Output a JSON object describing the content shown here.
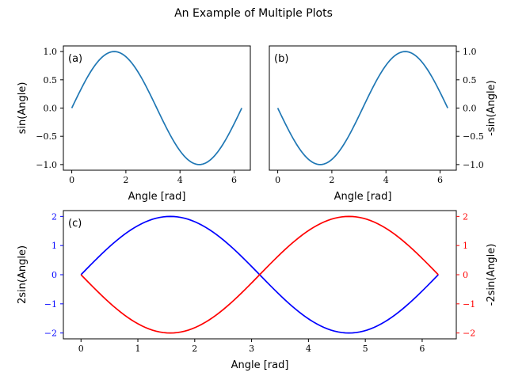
{
  "figure": {
    "title": "An Example of Multiple Plots"
  },
  "chart_data": [
    {
      "type": "line",
      "panel_label": "(a)",
      "title": "",
      "xlabel": "Angle [rad]",
      "ylabel": "sin(Angle)",
      "ylabel_side": "left",
      "xlim": [
        -0.31,
        6.6
      ],
      "ylim": [
        -1.1,
        1.1
      ],
      "xticks": [
        0,
        2,
        4,
        6
      ],
      "yticks": [
        -1.0,
        -0.5,
        0.0,
        0.5,
        1.0
      ],
      "ytick_labels": [
        "−1.0",
        "−0.5",
        "0.0",
        "0.5",
        "1.0"
      ],
      "grid": false,
      "series": [
        {
          "function": "sin",
          "amplitude": 1,
          "x_range": [
            0,
            6.2832
          ],
          "color": "#1f77b4"
        }
      ]
    },
    {
      "type": "line",
      "panel_label": "(b)",
      "title": "",
      "xlabel": "Angle [rad]",
      "ylabel": "-sin(Angle)",
      "ylabel_side": "right",
      "xlim": [
        -0.31,
        6.6
      ],
      "ylim": [
        -1.1,
        1.1
      ],
      "xticks": [
        0,
        2,
        4,
        6
      ],
      "yticks": [
        -1.0,
        -0.5,
        0.0,
        0.5,
        1.0
      ],
      "ytick_labels": [
        "−1.0",
        "−0.5",
        "0.0",
        "0.5",
        "1.0"
      ],
      "grid": false,
      "series": [
        {
          "function": "sin",
          "amplitude": -1,
          "x_range": [
            0,
            6.2832
          ],
          "color": "#1f77b4"
        }
      ]
    },
    {
      "type": "line",
      "panel_label": "(c)",
      "title": "",
      "xlabel": "Angle [rad]",
      "ylabel": "2sin(Angle)",
      "ylabel_color": "#0000ff",
      "ylabel2": "-2sin(Angle)",
      "ylabel2_color": "#ff0000",
      "xlim": [
        -0.31,
        6.6
      ],
      "ylim": [
        -2.2,
        2.2
      ],
      "xticks": [
        0,
        1,
        2,
        3,
        4,
        5,
        6
      ],
      "yticks": [
        -2,
        -1,
        0,
        1,
        2
      ],
      "ytick_labels": [
        "−2",
        "−1",
        "0",
        "1",
        "2"
      ],
      "grid": false,
      "series": [
        {
          "function": "sin",
          "amplitude": 2,
          "x_range": [
            0,
            6.2832
          ],
          "color": "#0000ff",
          "axis": "left"
        },
        {
          "function": "sin",
          "amplitude": -2,
          "x_range": [
            0,
            6.2832
          ],
          "color": "#ff0000",
          "axis": "right"
        }
      ]
    }
  ]
}
